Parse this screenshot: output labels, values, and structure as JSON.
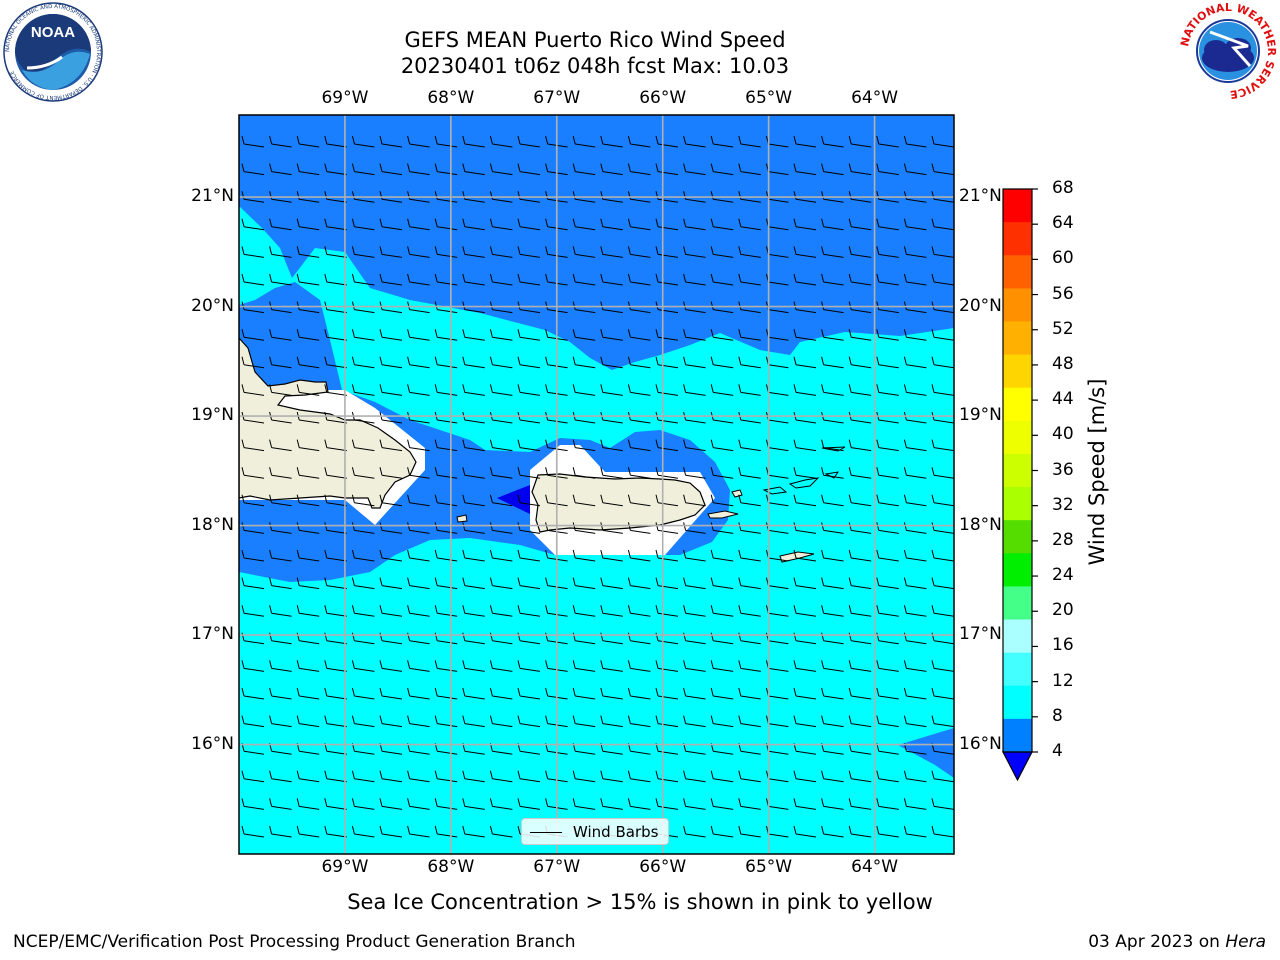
{
  "title": {
    "line1": "GEFS MEAN Puerto Rico Wind Speed",
    "line2": "20230401 t06z 048h fcst   Max: 10.03"
  },
  "axes": {
    "lon_labels": [
      "69°W",
      "68°W",
      "67°W",
      "66°W",
      "65°W",
      "64°W"
    ],
    "lat_labels": [
      "21°N",
      "20°N",
      "19°N",
      "18°N",
      "17°N",
      "16°N"
    ],
    "lon_values": [
      -69,
      -68,
      -67,
      -66,
      -65,
      -64
    ],
    "lat_values": [
      21,
      20,
      19,
      18,
      17,
      16
    ],
    "lon_range": [
      -70,
      -63.25
    ],
    "lat_range": [
      15.0,
      21.75
    ]
  },
  "legend": {
    "label": "Wind Barbs"
  },
  "colorbar": {
    "label": "Wind Speed [m/s]",
    "ticks": [
      "68",
      "64",
      "60",
      "56",
      "52",
      "48",
      "44",
      "40",
      "36",
      "32",
      "28",
      "24",
      "20",
      "16",
      "12",
      "8",
      "4"
    ],
    "colors": [
      "#ff0000",
      "#ff3000",
      "#ff6000",
      "#ff9000",
      "#ffb000",
      "#ffd500",
      "#ffff00",
      "#eeff00",
      "#ccff00",
      "#aaff00",
      "#55dd00",
      "#00ee00",
      "#44ff88",
      "#aaffff",
      "#44ffff",
      "#00ffff",
      "#0080ff"
    ],
    "under_color": "#0000ff"
  },
  "subtitle": "Sea Ice Concentration > 15% is shown in pink to yellow",
  "footer": {
    "left": "NCEP/EMC/Verification Post Processing Product Generation Branch",
    "date": "03 Apr 2023 on ",
    "machine": "Hera"
  },
  "logos": {
    "left": {
      "text": "NOAA",
      "ring_text": "NATIONAL OCEANIC AND ATMOSPHERIC ADMINISTRATION · U.S. DEPARTMENT OF COMMERCE"
    },
    "right": {
      "ring_text": "NATIONAL WEATHER SERVICE"
    }
  },
  "colors": {
    "band_4_8": "#1a7fff",
    "band_8_12": "#00ffff",
    "band_under_4": "#0000ee",
    "land": "#efefdc"
  }
}
